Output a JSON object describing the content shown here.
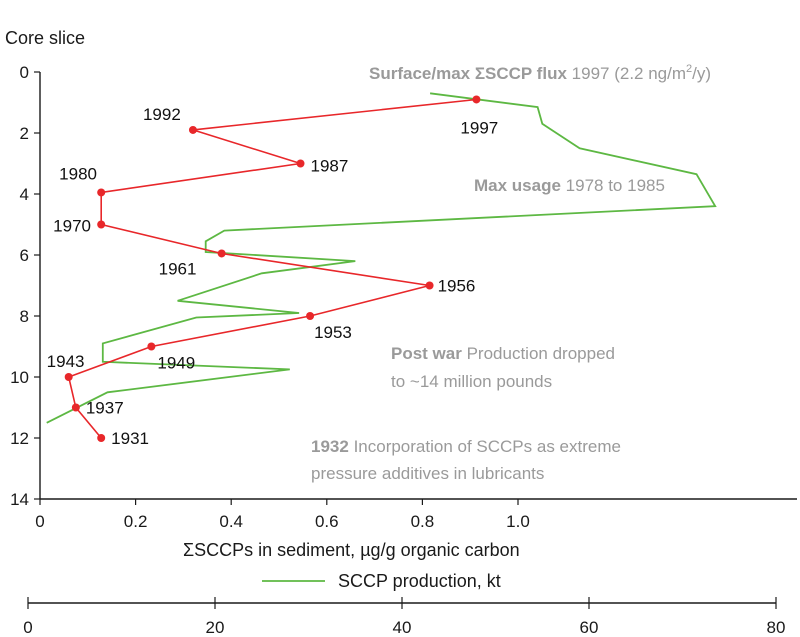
{
  "chart_data": {
    "type": "line",
    "y_axis": {
      "label": "Core slice",
      "range": [
        0,
        14
      ],
      "ticks": [
        0,
        2,
        4,
        6,
        8,
        10,
        12,
        14
      ],
      "tick_labels": [
        "0",
        "2",
        "4",
        "6",
        "8",
        "10",
        "12",
        "14"
      ],
      "reversed": true
    },
    "x_axis_primary": {
      "label": "ΣSCCPs in sediment, µg/g organic carbon",
      "range": [
        0,
        1.0
      ],
      "ticks": [
        0,
        0.2,
        0.4,
        0.6,
        0.8,
        1.0
      ],
      "tick_labels": [
        "0",
        "0.2",
        "0.4",
        "0.6",
        "0.8",
        "1.0"
      ]
    },
    "x_axis_secondary": {
      "label": "SCCP production, kt",
      "range": [
        0,
        80
      ],
      "ticks": [
        0,
        20,
        40,
        60,
        80
      ],
      "tick_labels": [
        "0",
        "20",
        "40",
        "60",
        "80"
      ]
    },
    "series": [
      {
        "name": "ΣSCCPs in sediment",
        "color": "#e8272a",
        "marker": "circle",
        "axis": "primary",
        "points": [
          {
            "x": 0.913,
            "y": 0.9,
            "label": "1997"
          },
          {
            "x": 0.32,
            "y": 1.9,
            "label": "1992"
          },
          {
            "x": 0.545,
            "y": 3.0,
            "label": "1987"
          },
          {
            "x": 0.128,
            "y": 3.95,
            "label": "1980"
          },
          {
            "x": 0.128,
            "y": 5.0,
            "label": "1970"
          },
          {
            "x": 0.38,
            "y": 5.95,
            "label": "1961"
          },
          {
            "x": 0.815,
            "y": 7.0,
            "label": "1956"
          },
          {
            "x": 0.565,
            "y": 8.0,
            "label": "1953"
          },
          {
            "x": 0.233,
            "y": 9.0,
            "label": "1949"
          },
          {
            "x": 0.06,
            "y": 10.0,
            "label": "1943"
          },
          {
            "x": 0.075,
            "y": 11.0,
            "label": "1937"
          },
          {
            "x": 0.128,
            "y": 12.0,
            "label": "1931"
          }
        ]
      },
      {
        "name": "SCCP production, kt",
        "color": "#5db843",
        "axis": "secondary",
        "points": [
          {
            "x": 2.0,
            "y": 11.5
          },
          {
            "x": 8.5,
            "y": 10.5
          },
          {
            "x": 28.0,
            "y": 9.75
          },
          {
            "x": 8.0,
            "y": 9.5
          },
          {
            "x": 8.0,
            "y": 8.9
          },
          {
            "x": 18.0,
            "y": 8.05
          },
          {
            "x": 29.0,
            "y": 7.9
          },
          {
            "x": 16.0,
            "y": 7.5
          },
          {
            "x": 25.0,
            "y": 6.6
          },
          {
            "x": 35.0,
            "y": 6.2
          },
          {
            "x": 19.0,
            "y": 5.9
          },
          {
            "x": 19.0,
            "y": 5.55
          },
          {
            "x": 21.0,
            "y": 5.2
          },
          {
            "x": 73.5,
            "y": 4.4
          },
          {
            "x": 71.5,
            "y": 3.35
          },
          {
            "x": 59.0,
            "y": 2.5
          },
          {
            "x": 55.0,
            "y": 1.7
          },
          {
            "x": 54.5,
            "y": 1.15
          },
          {
            "x": 43.0,
            "y": 0.7
          }
        ]
      }
    ],
    "legend": {
      "position": "below x-axis",
      "entries": [
        {
          "label": "SCCP production, kt",
          "color": "#5db843"
        }
      ]
    },
    "annotations": [
      {
        "bold": "Surface/max ΣSCCP flux",
        "rest": "1997 (2.2 ng/m",
        "sup": "2",
        "tail": "/y)"
      },
      {
        "bold": "Max usage",
        "rest": "1978 to 1985"
      },
      {
        "bold": "Post war",
        "rest": "Production dropped",
        "line2": "to ~14 million pounds"
      },
      {
        "bold": "1932",
        "rest": "Incorporation of SCCPs as extreme",
        "line2": "pressure additives in lubricants"
      }
    ],
    "grid": false
  }
}
